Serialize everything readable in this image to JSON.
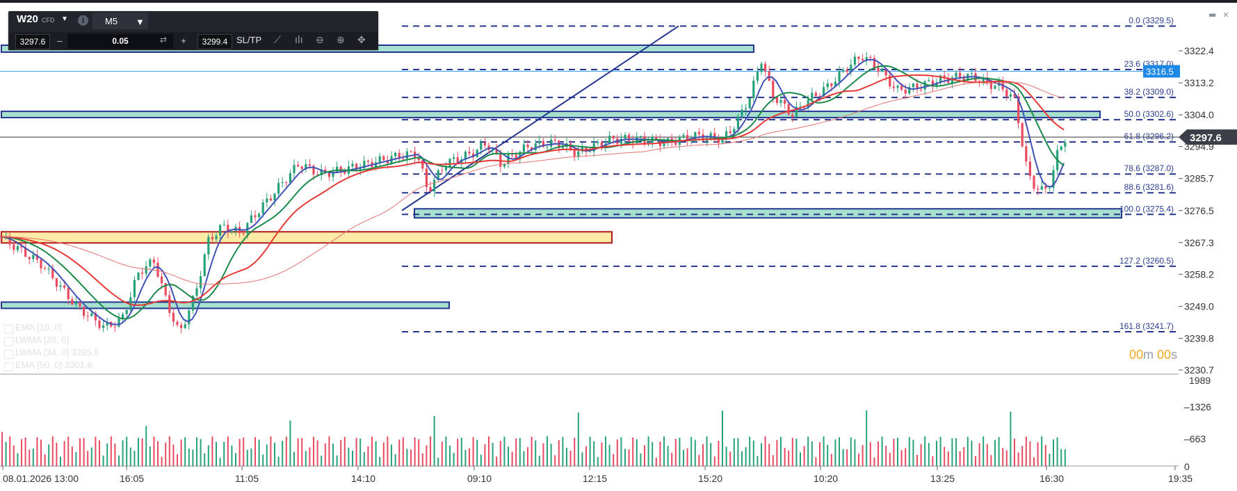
{
  "window": {
    "minimize_glyph": "▬",
    "close_glyph": "×"
  },
  "toolbar": {
    "symbol": "W20",
    "instrument_type": "CFD",
    "info_glyph": "i",
    "timeframe": "M5",
    "sell_price": "3297.6",
    "minus_label": "–",
    "volume": "0.05",
    "plus_label": "+",
    "buy_price": "3299.4",
    "sltp_label": "SL/TP",
    "icons": [
      "trend-line-icon",
      "indicators-icon",
      "zoom-out-icon",
      "zoom-in-icon",
      "move-icon",
      "swap-icon"
    ]
  },
  "chart_data": {
    "type": "candlestick",
    "price_axis": [
      "3322.4",
      "3313.2",
      "3304.0",
      "3294.9",
      "3285.7",
      "3276.5",
      "3267.3",
      "3258.2",
      "3249.0",
      "3239.8",
      "3230.7"
    ],
    "time_axis": [
      "08.01.2026 13:00",
      "16:05",
      "11:05",
      "14:10",
      "09:10",
      "12:15",
      "15:20",
      "10:20",
      "13:25",
      "16:30",
      "19:35"
    ],
    "volume_axis": [
      "1989",
      "1326",
      "663",
      "0"
    ],
    "current_price": "3297.6",
    "marker_price": "3316.5",
    "fibonacci_levels": [
      {
        "label": "0.0 (3329.5)",
        "price": 3329.5
      },
      {
        "label": "23.6 (3317.0)",
        "price": 3317.0
      },
      {
        "label": "38.2 (3309.0)",
        "price": 3309.0
      },
      {
        "label": "50.0 (3302.6)",
        "price": 3302.6
      },
      {
        "label": "61.8 (3296.2)",
        "price": 3296.2
      },
      {
        "label": "78.6 (3287.0)",
        "price": 3287.0
      },
      {
        "label": "88.6 (3281.6)",
        "price": 3281.6
      },
      {
        "label": "100.0 (3275.4)",
        "price": 3275.4
      },
      {
        "label": "127.2 (3260.5)",
        "price": 3260.5
      },
      {
        "label": "161.8 (3241.7)",
        "price": 3241.7
      }
    ],
    "indicators": [
      {
        "name": "EMA [10, 0]",
        "color": "#3f51b5"
      },
      {
        "name": "LWMA [20, 0]",
        "color": "#1b8a4b"
      },
      {
        "name": "LWMA [34, 0] 3295.5",
        "color": "#e53935"
      },
      {
        "name": "EMA [50, 0] 3301.6",
        "color": "#e57373"
      }
    ],
    "up_color": "#26a17a",
    "down_color": "#e84a5f"
  },
  "timer": {
    "minutes": "00",
    "m": "m",
    "seconds": "00",
    "s": "s"
  }
}
